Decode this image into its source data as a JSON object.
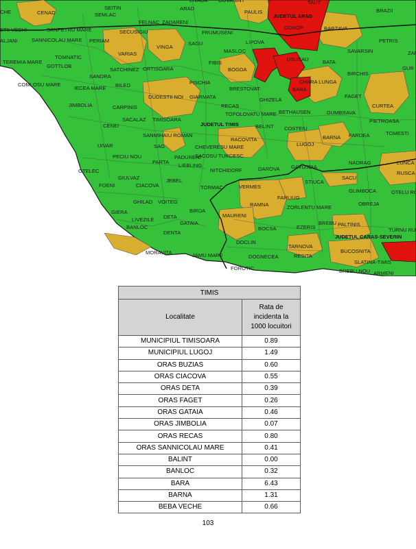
{
  "colors": {
    "green": "#35c23a",
    "yellow": "#d9ad2e",
    "red": "#e0120e",
    "county_border": "#1a1a1a",
    "commune_border": "#555555",
    "table_header": "#d4d4d4"
  },
  "map": {
    "county_labels": {
      "arad": "JUDETUL ARAD",
      "timis": "JUDETUL TIMIS",
      "caras": "JUDETUL CARAS-SEVERIN"
    },
    "place_names": [
      "CHE",
      "CENAD",
      "SEITIN",
      "SEMLAC",
      "ARAD",
      "LIVADA",
      "COVASINT",
      "TAUT",
      "BRAZII",
      "FELNAC",
      "ZADARENI",
      "PAULIS",
      "STII VECHI",
      "SANPETRU MARE",
      "SECUSIGIU",
      "CONOP",
      "BARZAVA",
      "FRUMUSENI",
      "ALJANI",
      "SANNICOLAU MARE",
      "PERIAM",
      "VINGA",
      "SAGU",
      "LIPOVA",
      "PETRIS",
      "TOMNATIC",
      "VARIAS",
      "MASLOC",
      "SAVARSIN",
      "TEREMIA MARE",
      "GOTTLOB",
      "FIBIS",
      "ZAN",
      "USUSAU",
      "BATA",
      "SATCHINEZ",
      "ORTISOARA",
      "BOGDA",
      "GUR",
      "SANDRA",
      "BIRCHIS",
      "COMLOSU MARE",
      "IECEA MARE",
      "BILED",
      "PISCHIA",
      "CHARA LUNGA",
      "BARA",
      "BRESTOVAT",
      "FAGET",
      "DUDESTII NOI",
      "GIARMATA",
      "GHIZELA",
      "JIMBOLIA",
      "CARPINIS",
      "RECAS",
      "CURTEA",
      "TOPOLOVATU MARE",
      "BETHAUSEN",
      "DUMBRAVA",
      "CENEI",
      "SACALAZ",
      "TIMISOARA",
      "BELINT",
      "PIETROASA",
      "COSTEIU",
      "TOMESTI",
      "SANMIHAIU ROMAN",
      "RACOVITA",
      "BARNA",
      "FARDEA",
      "UIVAR",
      "SAG",
      "CHEVERESU MARE",
      "LUGOJ",
      "PECIU NOU",
      "PARTA",
      "PADURENI",
      "SACOSU TURCESC",
      "LIEBLING",
      "NITCHIDORF",
      "DAROVA",
      "GAVOJDIA",
      "NADRAG",
      "LUNCA",
      "OTELEC",
      "RUSCA",
      "GIULVAZ",
      "JEBEL",
      "SACU",
      "FOENI",
      "CIACOVA",
      "TORMAC",
      "VERMES",
      "STIUCA",
      "FARLIUG",
      "GLIMBOCA",
      "OTELU RO",
      "GHILAD",
      "VOITEG",
      "RAMNA",
      "ZORLENTU MARE",
      "OBREJA",
      "BIRDA",
      "GIERA",
      "LIVEZILE",
      "DETA",
      "MAURENI",
      "PALTINIS",
      "BANLOC",
      "GATAIA",
      "BOCSA",
      "EZERIS",
      "BREBU",
      "TURNU RU",
      "DENTA",
      "DOCLIN",
      "TARNOVA",
      "MORAVITA",
      "JAMU MARE",
      "DOGNECEA",
      "RESITA",
      "BUCOSNITA",
      "SLATINA-TIMIS",
      "FOROTIC",
      "BREBU NOU",
      "ARMENI"
    ]
  },
  "table": {
    "county": "TIMIS",
    "col_locality": "Localitate",
    "col_rate_lines": [
      "Rata de",
      "incidenta la",
      "1000 locuitori"
    ],
    "rows": [
      {
        "locality": "MUNICIPIUL TIMISOARA",
        "rate": "0.89"
      },
      {
        "locality": "MUNICIPIUL LUGOJ",
        "rate": "1.49"
      },
      {
        "locality": "ORAS BUZIAS",
        "rate": "0.60"
      },
      {
        "locality": "ORAS CIACOVA",
        "rate": "0.55"
      },
      {
        "locality": "ORAS DETA",
        "rate": "0.39"
      },
      {
        "locality": "ORAS FAGET",
        "rate": "0.26"
      },
      {
        "locality": "ORAS GATAIA",
        "rate": "0.46"
      },
      {
        "locality": "ORAS JIMBOLIA",
        "rate": "0.07"
      },
      {
        "locality": "ORAS RECAS",
        "rate": "0.80"
      },
      {
        "locality": "ORAS SANNICOLAU MARE",
        "rate": "0.41"
      },
      {
        "locality": "BALINT",
        "rate": "0.00"
      },
      {
        "locality": "BANLOC",
        "rate": "0.32"
      },
      {
        "locality": "BARA",
        "rate": "6.43"
      },
      {
        "locality": "BARNA",
        "rate": "1.31"
      },
      {
        "locality": "BEBA VECHE",
        "rate": "0.66"
      }
    ]
  },
  "page_number": "103"
}
